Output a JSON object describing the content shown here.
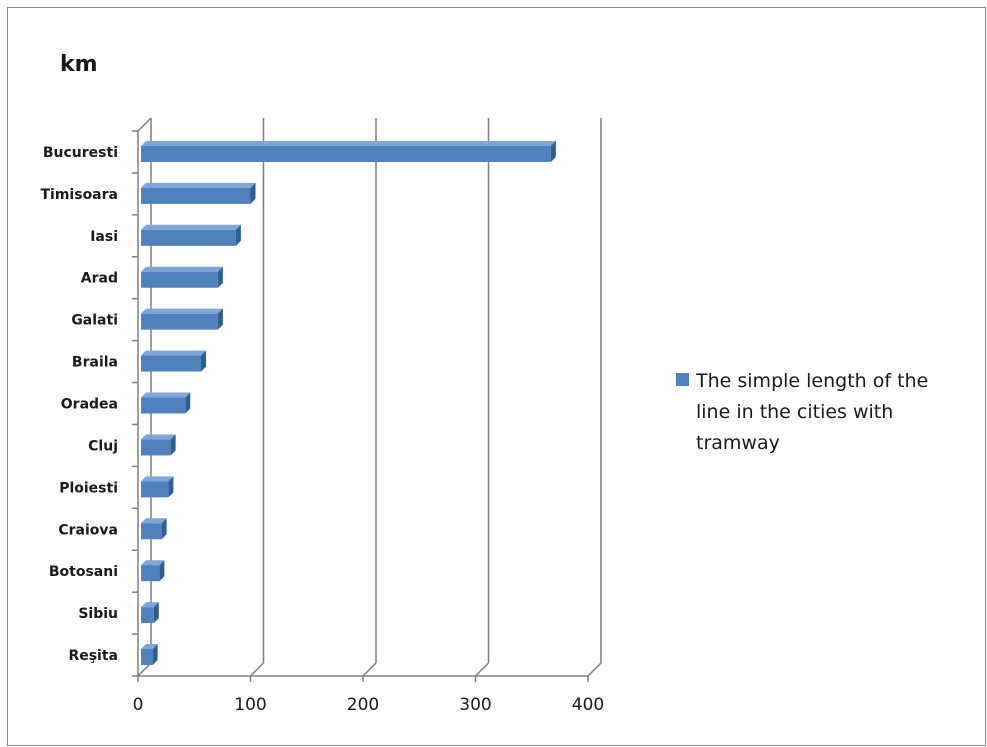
{
  "chart_data": {
    "type": "bar",
    "orientation": "horizontal",
    "title": "km",
    "categories": [
      "Bucuresti",
      "Timisoara",
      "Iasi",
      "Arad",
      "Galati",
      "Braila",
      "Oradea",
      "Cluj",
      "Ploiesti",
      "Craiova",
      "Botosani",
      "Sibiu",
      "Reşita"
    ],
    "series": [
      {
        "name": "The simple length of the line in the cities with tramway",
        "values": [
          367,
          100,
          87,
          71,
          71,
          56,
          42,
          29,
          27,
          21,
          19,
          14,
          13
        ]
      }
    ],
    "xlim": [
      0,
      400
    ],
    "xticks": [
      "0",
      "100",
      "200",
      "300",
      "400"
    ],
    "grid": true,
    "legend_position": "right",
    "style": "3d",
    "colors": {
      "bar": "#4f81bd",
      "bar_top": "#7ea6d9",
      "bar_side": "#2e5f93"
    }
  },
  "legend": {
    "lines": [
      "The simple length of the",
      "line in the cities with",
      "tramway"
    ]
  }
}
